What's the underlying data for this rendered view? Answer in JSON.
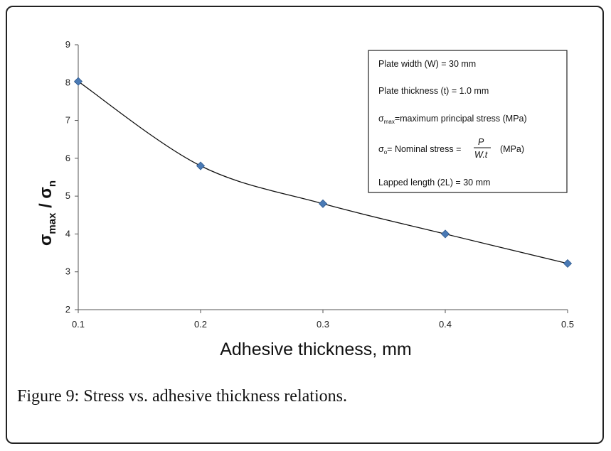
{
  "caption": {
    "label": "Figure 9",
    "text": ": Stress vs. adhesive thickness relations."
  },
  "legend_box": {
    "line1": "Plate width (W) = 30 mm",
    "line2": "Plate thickness (t) = 1.0 mm",
    "line3_sym": "σ",
    "line3_sub": "max",
    "line3_rest": "=maximum principal stress (MPa)",
    "line4_sym": "σ",
    "line4_sub": "o",
    "line4_rest": "= Nominal stress =",
    "line4_num": "P",
    "line4_den": "W.t",
    "line4_unit": "(MPa)",
    "line5": "Lapped length (2L) = 30 mm"
  },
  "chart_data": {
    "type": "scatter",
    "xlabel": "Adhesive thickness, mm",
    "ylabel_sym": "σ",
    "ylabel_sub1": "max",
    "ylabel_slash": " / ",
    "ylabel_sym2": "σ",
    "ylabel_sub2": "n",
    "xlim": [
      0.1,
      0.5
    ],
    "ylim": [
      2,
      9
    ],
    "xticks": [
      "0.1",
      "0.2",
      "0.3",
      "0.4",
      "0.5"
    ],
    "yticks": [
      "2",
      "3",
      "4",
      "5",
      "6",
      "7",
      "8",
      "9"
    ],
    "series": [
      {
        "x": [
          0.1,
          0.2,
          0.3,
          0.4,
          0.5
        ],
        "y": [
          8.03,
          5.8,
          4.8,
          4.0,
          3.22
        ]
      }
    ],
    "trendline": true,
    "marker": "diamond",
    "marker_color": "#4a7ab5",
    "line_color": "#111111",
    "grid": false
  }
}
